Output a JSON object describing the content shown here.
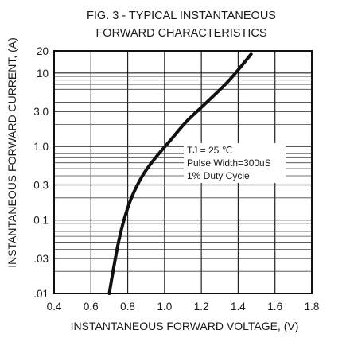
{
  "chart_data": {
    "type": "line",
    "title_line1": "FIG. 3 - TYPICAL INSTANTANEOUS",
    "title_line2": "FORWARD CHARACTERISTICS",
    "xlabel": "INSTANTANEOUS FORWARD VOLTAGE, (V)",
    "ylabel": "INSTANTANEOUS FORWARD CURRENT, (A)",
    "x_scale": "linear",
    "y_scale": "log",
    "xlim": [
      0.4,
      1.8
    ],
    "ylim": [
      0.01,
      20
    ],
    "grid": true,
    "x_ticks": [
      {
        "v": 0.4,
        "label": "0.4"
      },
      {
        "v": 0.6,
        "label": "0.6"
      },
      {
        "v": 0.8,
        "label": "0.8"
      },
      {
        "v": 1.0,
        "label": "1.0"
      },
      {
        "v": 1.2,
        "label": "1.2"
      },
      {
        "v": 1.4,
        "label": "1.4"
      },
      {
        "v": 1.6,
        "label": "1.6"
      },
      {
        "v": 1.8,
        "label": "1.8"
      }
    ],
    "y_ticks": [
      {
        "v": 0.01,
        "label": ".01"
      },
      {
        "v": 0.03,
        "label": ".03"
      },
      {
        "v": 0.1,
        "label": "0.1"
      },
      {
        "v": 0.3,
        "label": "0.3"
      },
      {
        "v": 1.0,
        "label": "1.0"
      },
      {
        "v": 3.0,
        "label": "3.0"
      },
      {
        "v": 10,
        "label": "10"
      },
      {
        "v": 20,
        "label": "20"
      }
    ],
    "y_minor_grid": [
      0.02,
      0.04,
      0.05,
      0.06,
      0.07,
      0.08,
      0.09,
      0.2,
      0.4,
      0.5,
      0.6,
      0.7,
      0.8,
      0.9,
      2,
      4,
      5,
      6,
      7,
      8,
      9
    ],
    "series": [
      {
        "points": [
          {
            "x": 0.7,
            "y": 0.01
          },
          {
            "x": 0.72,
            "y": 0.02
          },
          {
            "x": 0.75,
            "y": 0.05
          },
          {
            "x": 0.78,
            "y": 0.1
          },
          {
            "x": 0.82,
            "y": 0.2
          },
          {
            "x": 0.88,
            "y": 0.4
          },
          {
            "x": 0.95,
            "y": 0.7
          },
          {
            "x": 1.03,
            "y": 1.2
          },
          {
            "x": 1.12,
            "y": 2.2
          },
          {
            "x": 1.22,
            "y": 3.8
          },
          {
            "x": 1.33,
            "y": 7
          },
          {
            "x": 1.4,
            "y": 11
          },
          {
            "x": 1.47,
            "y": 18
          }
        ]
      }
    ],
    "annotation": {
      "lines": [
        "TJ = 25 ℃",
        "Pulse Width=300uS",
        "1% Duty Cycle"
      ],
      "placement": "right-center"
    }
  }
}
